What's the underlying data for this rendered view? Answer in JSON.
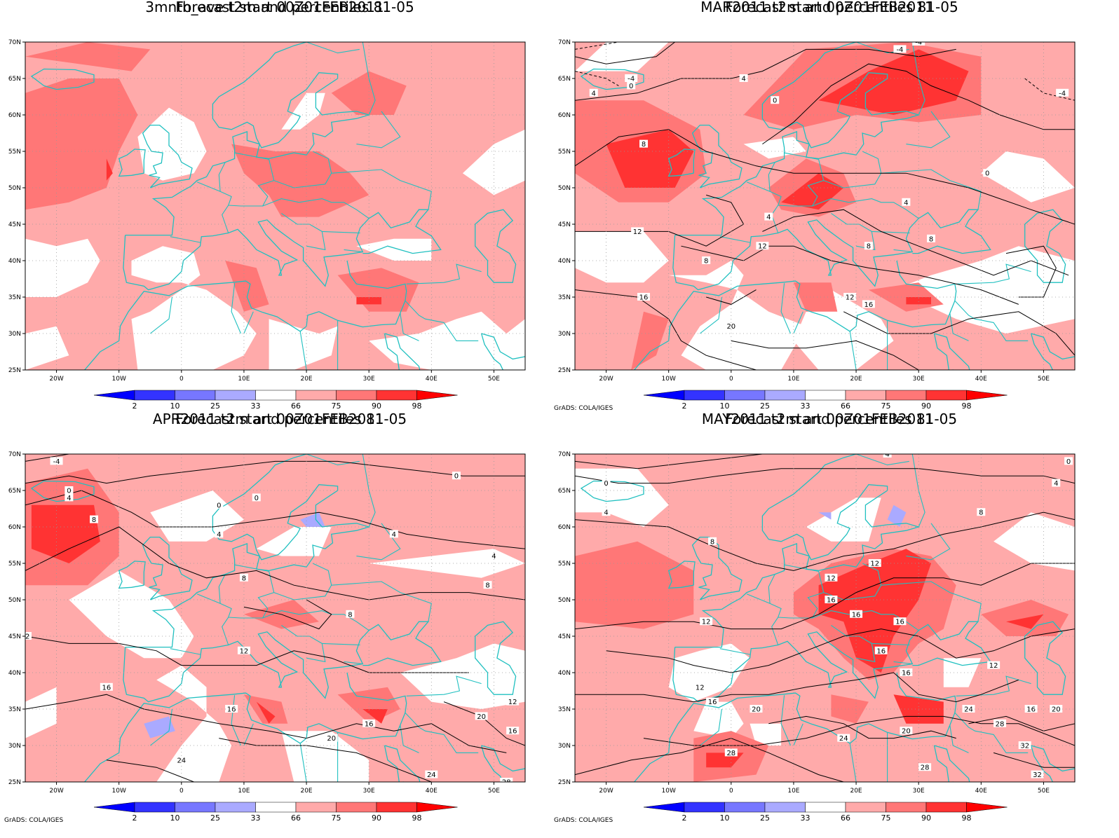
{
  "panels": [
    {
      "title_line1": "3mnth_ave t2m and percentiles 81-05",
      "title_line2": "Forecast start 00Z01FEB2011",
      "credit": ""
    },
    {
      "title_line1": "MAR2011 t2m and percentiles 81-05",
      "title_line2": "Forecast start 00Z01FEB2011",
      "credit": "GrADS: COLA/IGES"
    },
    {
      "title_line1": "APR2011 t2m and percentiles 81-05",
      "title_line2": "Forecast start 00Z01FEB2011",
      "credit": "GrADS: COLA/IGES"
    },
    {
      "title_line1": "MAY2011 t2m and percentiles 81-05",
      "title_line2": "Forecast start 00Z01FEB2011",
      "credit": "GrADS: COLA/IGES"
    }
  ],
  "lat_labels": [
    "70N",
    "65N",
    "60N",
    "55N",
    "50N",
    "45N",
    "40N",
    "35N",
    "30N",
    "25N"
  ],
  "lon_labels": [
    "20W",
    "10W",
    "0",
    "10E",
    "20E",
    "30E",
    "40E",
    "50E"
  ],
  "colorbar": {
    "labels": [
      "2",
      "10",
      "25",
      "33",
      "66",
      "75",
      "90",
      "98"
    ],
    "colors": [
      "#0000ff",
      "#3333ff",
      "#7777ff",
      "#aaaaff",
      "#ffffff",
      "#ffaaaa",
      "#ff7777",
      "#ff3333",
      "#ff0000"
    ]
  },
  "colors": {
    "coast": "#20c0c0",
    "contour": "#000000",
    "pct_66_75": "#ffaaaa",
    "pct_75_90": "#ff7777",
    "pct_90_98": "#ff3333",
    "pct_98": "#ff0000",
    "pct_33_25": "#aaaaff"
  },
  "contour_labels": {
    "mar": [
      "-4",
      "-4",
      "-4",
      "-4",
      "0",
      "0",
      "0",
      "4",
      "4",
      "4",
      "8",
      "8",
      "8",
      "12",
      "12",
      "12",
      "16",
      "16",
      "20",
      "8",
      "4"
    ],
    "apr": [
      "-4",
      "0",
      "0",
      "0",
      "4",
      "4",
      "4",
      "8",
      "8",
      "8",
      "8",
      "12",
      "12",
      "16",
      "16",
      "20",
      "24",
      "24",
      "16",
      "20",
      "12",
      "28"
    ],
    "may": [
      "0",
      "4",
      "4",
      "8",
      "8",
      "12",
      "12",
      "12",
      "16",
      "16",
      "16",
      "16",
      "16",
      "20",
      "20",
      "24",
      "24",
      "28",
      "28",
      "32",
      "32",
      "12",
      "16",
      "20"
    ]
  }
}
